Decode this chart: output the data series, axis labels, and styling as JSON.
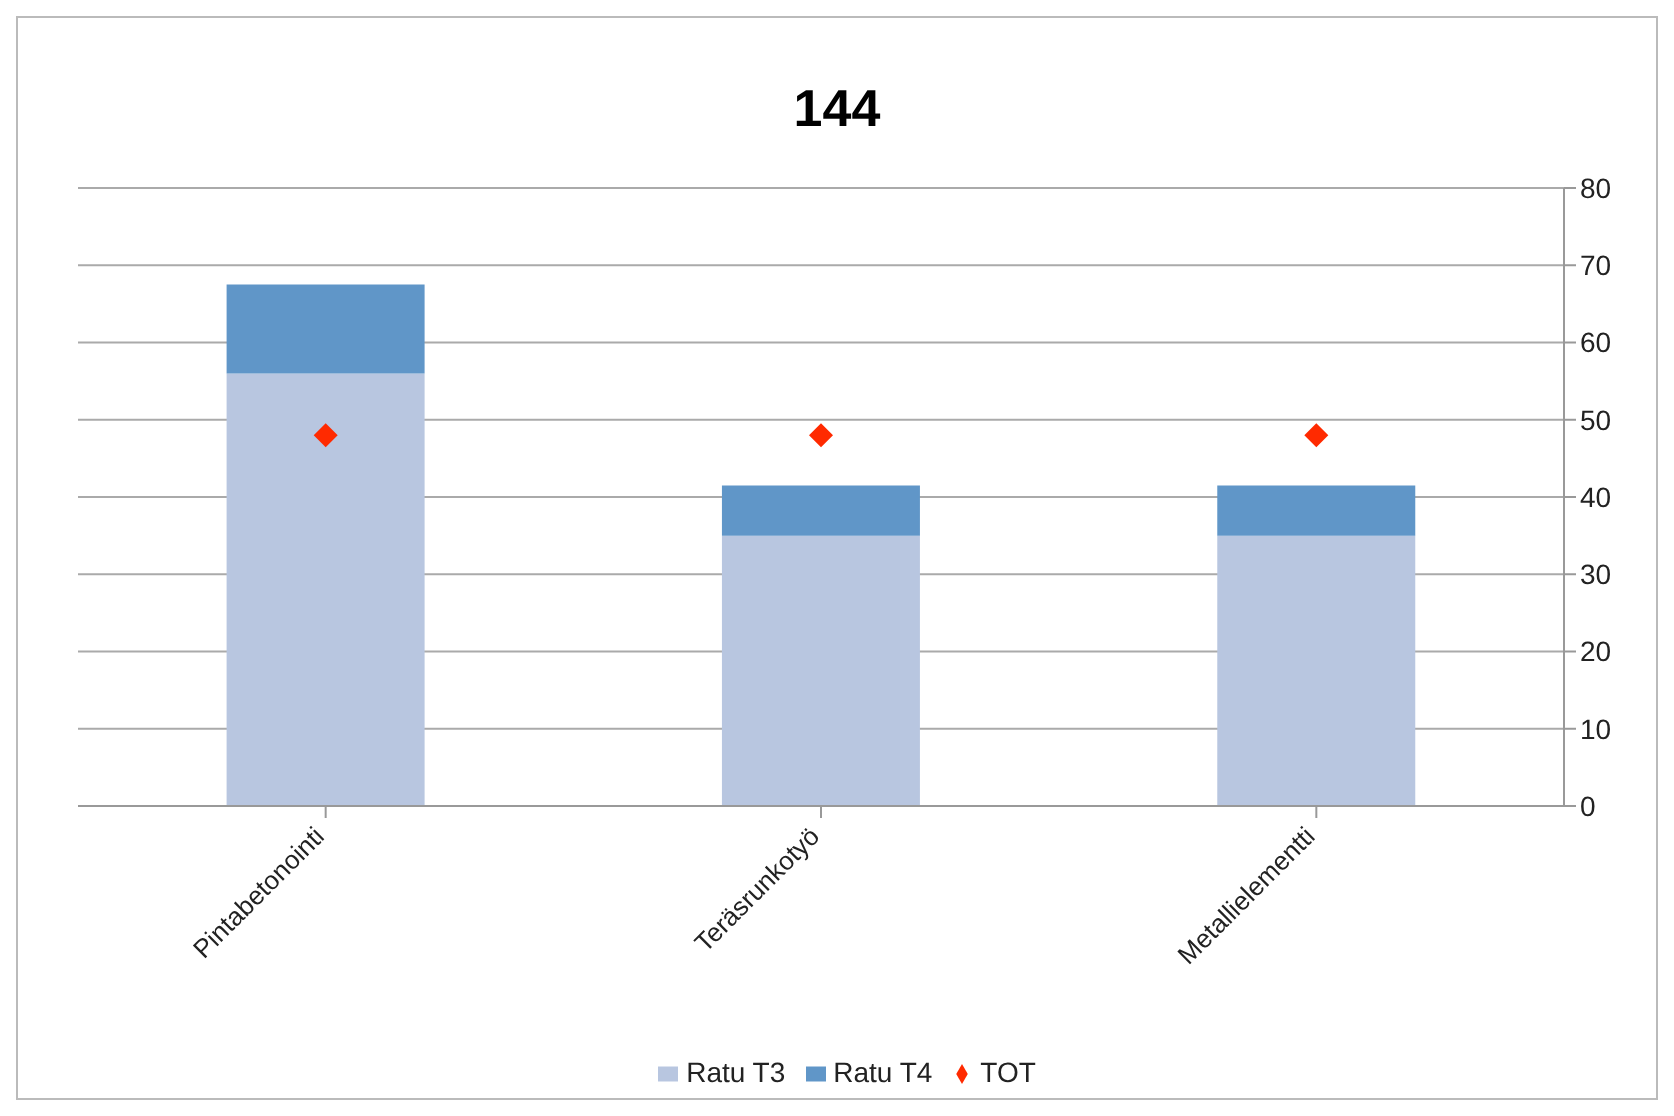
{
  "chart_data": {
    "type": "bar",
    "title": "144",
    "categories": [
      "Pintabetonointi",
      "Teräsrunkotyö",
      "Metallielementti"
    ],
    "stacked": true,
    "series": [
      {
        "name": "Ratu T3",
        "color": "#b8c6e0",
        "values": [
          56,
          35,
          35
        ]
      },
      {
        "name": "Ratu T4",
        "color": "#6096c8",
        "values": [
          11.5,
          6.5,
          6.5
        ]
      },
      {
        "name": "TOT",
        "type": "scatter",
        "color": "#ff2a00",
        "marker": "diamond",
        "x": [
          "Pintabetonointi",
          "Teräsrunkotyö",
          "Metallielementti"
        ],
        "values": [
          48,
          48,
          48
        ]
      }
    ],
    "ylim": [
      0,
      80
    ],
    "yticks": [
      0,
      10,
      20,
      30,
      40,
      50,
      60,
      70,
      80
    ],
    "grid": "y",
    "legend": "bottom"
  }
}
